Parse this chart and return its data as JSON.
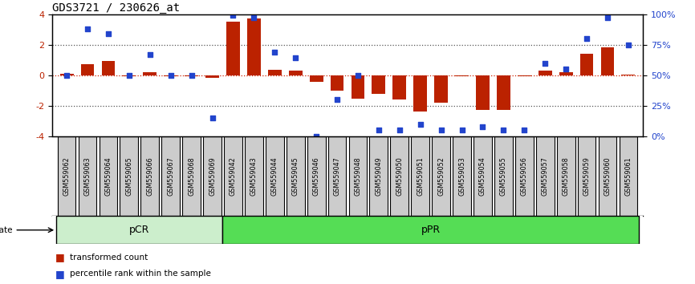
{
  "title": "GDS3721 / 230626_at",
  "samples": [
    "GSM559062",
    "GSM559063",
    "GSM559064",
    "GSM559065",
    "GSM559066",
    "GSM559067",
    "GSM559068",
    "GSM559069",
    "GSM559042",
    "GSM559043",
    "GSM559044",
    "GSM559045",
    "GSM559046",
    "GSM559047",
    "GSM559048",
    "GSM559049",
    "GSM559050",
    "GSM559051",
    "GSM559052",
    "GSM559053",
    "GSM559054",
    "GSM559055",
    "GSM559056",
    "GSM559057",
    "GSM559058",
    "GSM559059",
    "GSM559060",
    "GSM559061"
  ],
  "red_bars": [
    0.08,
    0.72,
    0.95,
    -0.05,
    0.22,
    -0.05,
    -0.05,
    -0.18,
    3.5,
    3.72,
    0.38,
    0.3,
    -0.45,
    -1.0,
    -1.55,
    -1.2,
    -1.6,
    -2.35,
    -1.8,
    -0.05,
    -2.25,
    -2.25,
    -0.05,
    0.28,
    0.18,
    1.42,
    1.82,
    0.05
  ],
  "blue_dots": [
    50,
    88,
    84,
    50,
    67,
    50,
    50,
    15,
    99,
    97,
    69,
    64,
    0,
    30,
    50,
    5,
    5,
    10,
    5,
    5,
    8,
    5,
    5,
    60,
    55,
    80,
    97,
    75
  ],
  "pCR_count": 8,
  "pPR_count": 20,
  "bar_color": "#bb2200",
  "dot_color": "#2244cc",
  "pCR_color": "#cceecc",
  "pPR_color": "#55dd55",
  "label_box_color": "#cccccc",
  "dotted_line_color": "#555555",
  "zero_line_color": "#cc2200",
  "legend_red_label": "transformed count",
  "legend_blue_label": "percentile rank within the sample",
  "title_fontsize": 10,
  "axis_fontsize": 8,
  "label_fontsize": 5.8,
  "legend_fontsize": 7.5
}
